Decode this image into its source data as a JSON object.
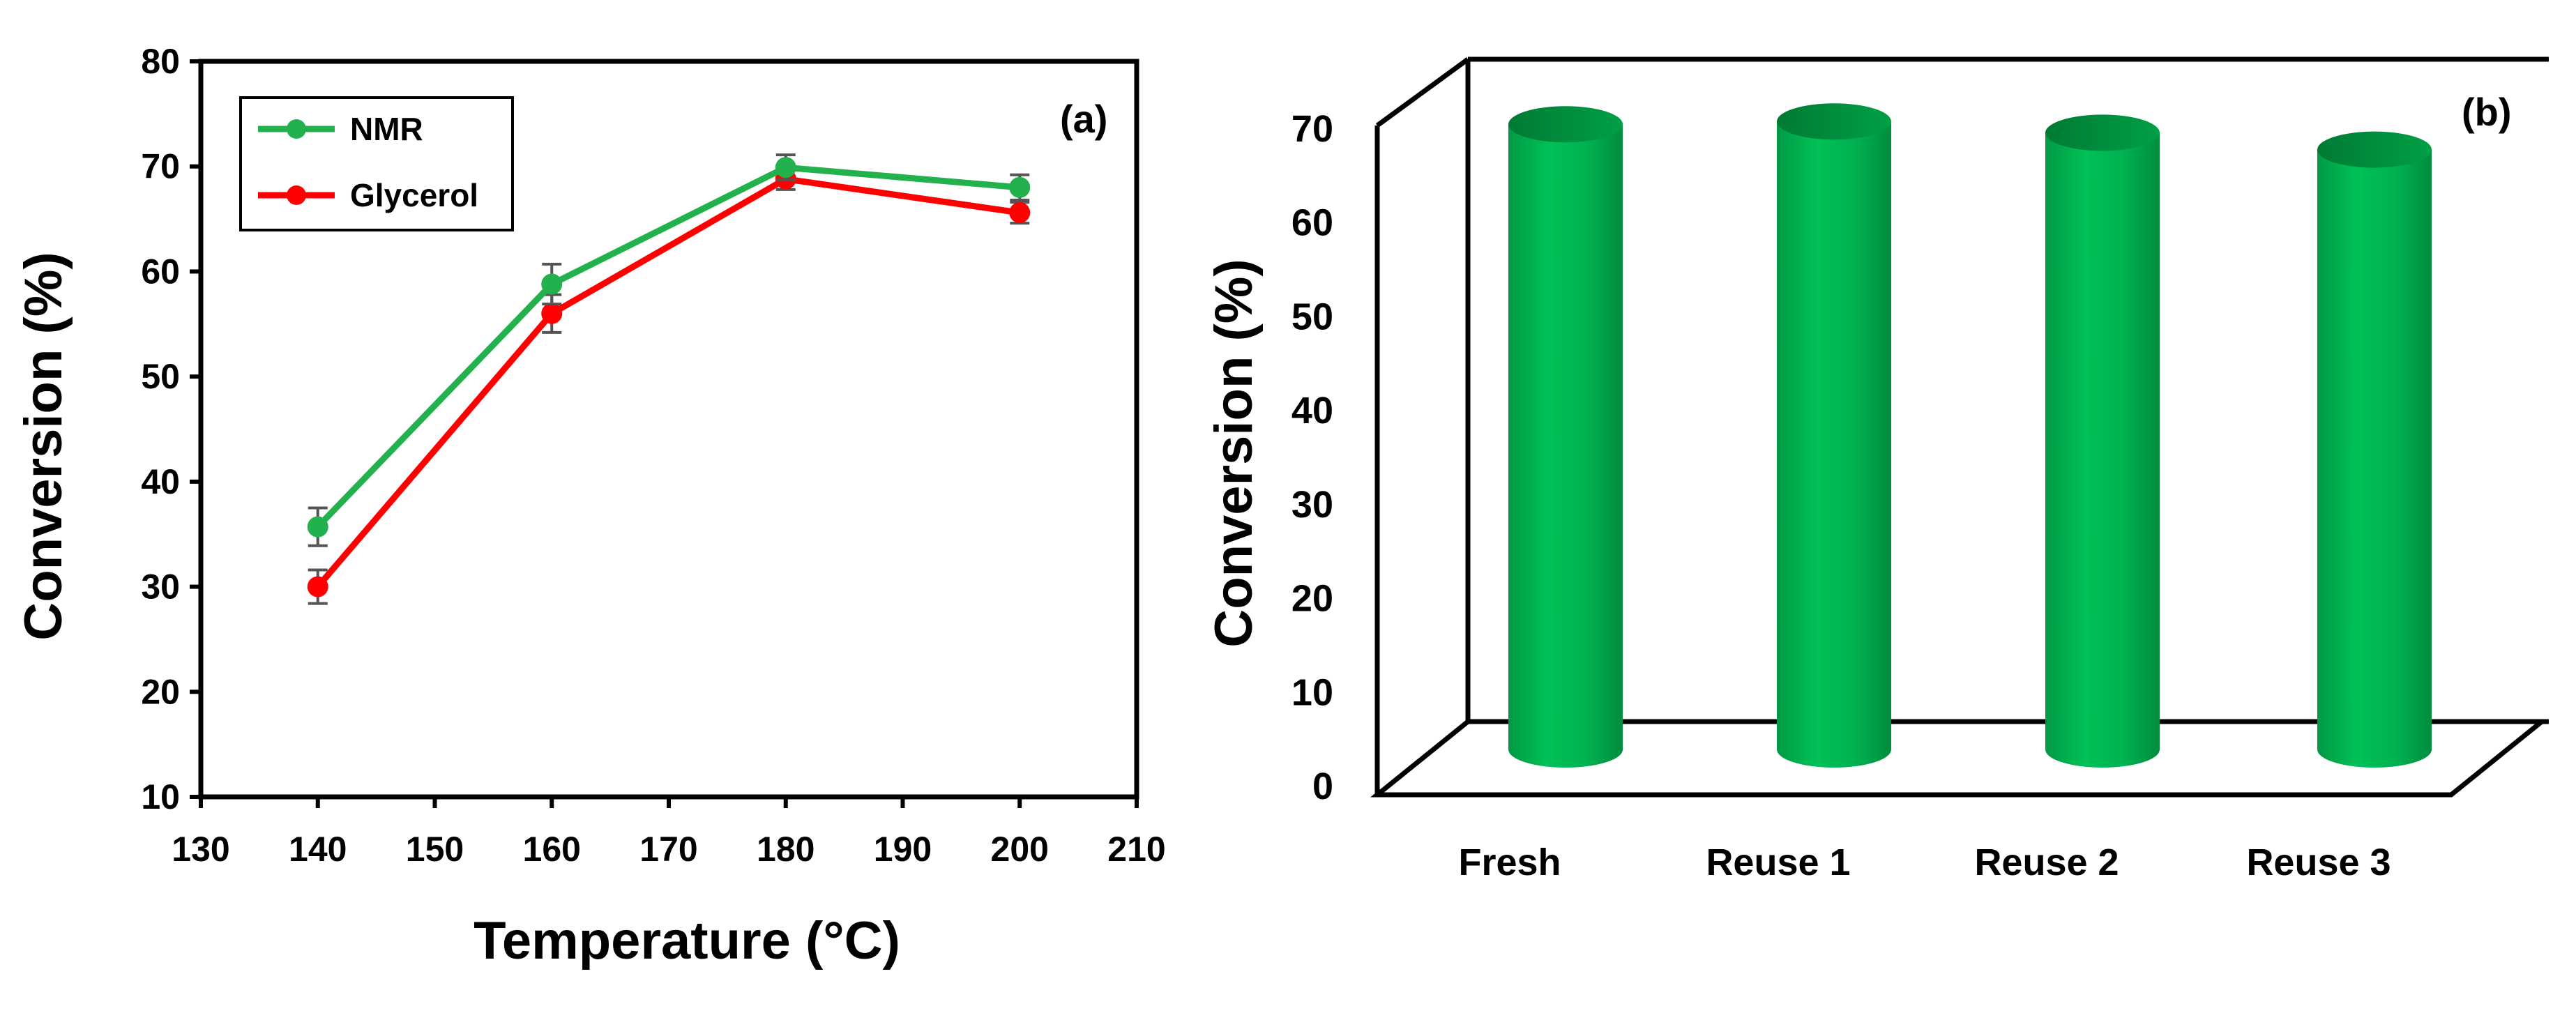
{
  "chart_data": [
    {
      "panel_label": "(a)",
      "type": "line",
      "title": "",
      "xlabel": "Temperature (°C)",
      "ylabel": "Conversion (%)",
      "xlim": [
        130,
        210
      ],
      "ylim": [
        10,
        80
      ],
      "xticks": [
        130,
        140,
        150,
        160,
        170,
        180,
        190,
        200,
        210
      ],
      "yticks": [
        10,
        20,
        30,
        40,
        50,
        60,
        70,
        80
      ],
      "legend_position": "top-left",
      "series": [
        {
          "name": "NMR",
          "color": "#22b14c",
          "x": [
            140,
            160,
            180,
            200
          ],
          "values": [
            35.7,
            58.8,
            69.9,
            68.0
          ],
          "errors": [
            1.8,
            1.9,
            1.2,
            1.2
          ]
        },
        {
          "name": "Glycerol",
          "color": "#ff0000",
          "x": [
            140,
            160,
            180,
            200
          ],
          "values": [
            30.0,
            56.0,
            68.8,
            65.6
          ],
          "errors": [
            1.6,
            1.8,
            1.0,
            1.0
          ]
        }
      ]
    },
    {
      "panel_label": "(b)",
      "type": "bar",
      "style": "3d-cylinder",
      "title": "",
      "xlabel": "",
      "ylabel": "Conversion (%)",
      "ylim": [
        0,
        70
      ],
      "yticks": [
        0,
        10,
        20,
        30,
        40,
        50,
        60,
        70
      ],
      "categories": [
        "Fresh",
        "Reuse 1",
        "Reuse 2",
        "Reuse 3"
      ],
      "values": [
        70.5,
        70.8,
        69.6,
        67.8
      ],
      "color": "#00b050"
    }
  ]
}
